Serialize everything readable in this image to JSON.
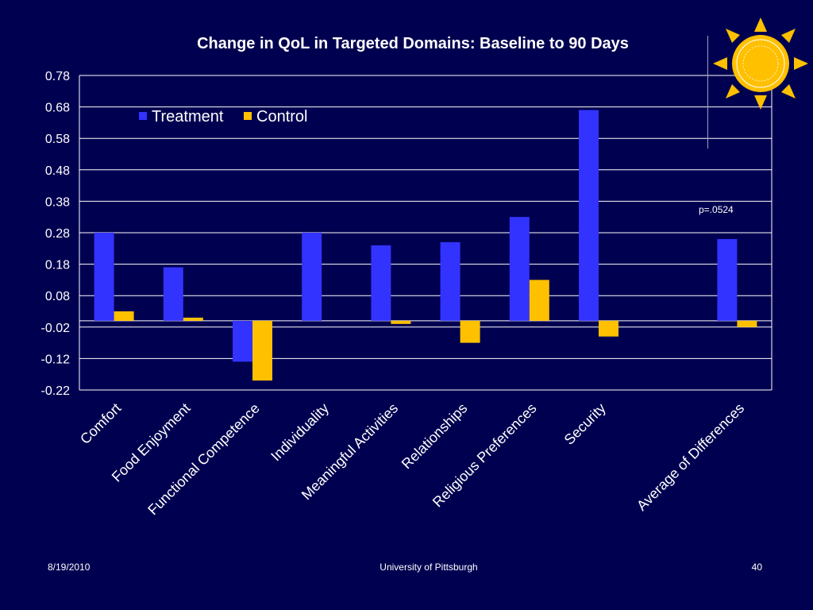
{
  "slide": {
    "title": "Change in QoL in Targeted Domains: Baseline to 90 Days",
    "annotation": "p=.0524",
    "footer": {
      "date": "8/19/2010",
      "org": "University of Pittsburgh",
      "page": "40"
    }
  },
  "colors": {
    "background": "#000050",
    "treatment": "#3333FF",
    "control": "#FFC000",
    "grid": "#ffffff",
    "text": "#ffffff"
  },
  "chart_data": {
    "type": "bar",
    "title": "Change in QoL in Targeted Domains: Baseline to 90 Days",
    "xlabel": "",
    "ylabel": "",
    "categories": [
      "Comfort",
      "Food Enjoyment",
      "Functional Competence",
      "Individuality",
      "Meaningful Activities",
      "Relationships",
      "Religious Preferences",
      "Security",
      "",
      "Average of Differences"
    ],
    "series": [
      {
        "name": "Treatment",
        "color": "#3333FF",
        "values": [
          0.28,
          0.17,
          -0.13,
          0.28,
          0.24,
          0.25,
          0.33,
          0.67,
          null,
          0.26
        ]
      },
      {
        "name": "Control",
        "color": "#FFC000",
        "values": [
          0.03,
          0.01,
          -0.19,
          null,
          -0.01,
          -0.07,
          0.13,
          -0.05,
          null,
          -0.02
        ]
      }
    ],
    "ylim": [
      -0.22,
      0.78
    ],
    "yticks": [
      "0.78",
      "0.68",
      "0.58",
      "0.48",
      "0.38",
      "0.28",
      "0.18",
      "0.08",
      "-0.02",
      "-0.12",
      "-0.22"
    ],
    "grid": true,
    "legend": "top-left"
  }
}
